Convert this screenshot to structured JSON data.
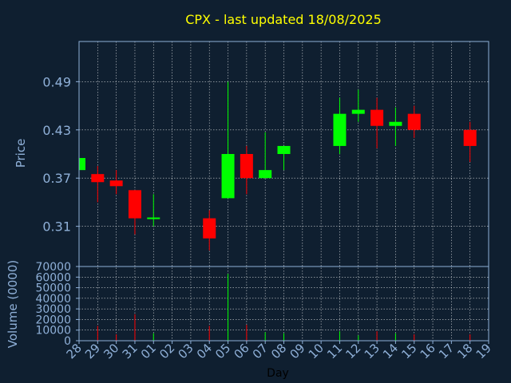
{
  "chart_data": {
    "type": "candlestick",
    "title": "CPX - last updated 18/08/2025",
    "colors": {
      "background": "#0f1f30",
      "up": "#00ff00",
      "down": "#ff0000",
      "grid": "#ffffff",
      "axis_text": "#8fb0d8",
      "title": "#ffff00"
    },
    "grid": true,
    "x_ticks": [
      "28",
      "29",
      "30",
      "31",
      "01",
      "02",
      "03",
      "04",
      "05",
      "06",
      "07",
      "08",
      "09",
      "10",
      "11",
      "12",
      "13",
      "14",
      "15",
      "16",
      "17",
      "18",
      "19"
    ],
    "xlabel": "Day",
    "price": {
      "ylabel": "Price",
      "ylim": [
        0.26,
        0.54
      ],
      "ticks": [
        "0.31",
        "0.37",
        "0.43",
        "0.49"
      ],
      "tick_values": [
        0.31,
        0.37,
        0.43,
        0.49
      ]
    },
    "volume": {
      "ylabel": "Volume (0000)",
      "ylim": [
        0,
        70000
      ],
      "ticks": [
        "0",
        "10000",
        "20000",
        "30000",
        "40000",
        "50000",
        "60000",
        "70000"
      ],
      "tick_values": [
        0,
        10000,
        20000,
        30000,
        40000,
        50000,
        60000,
        70000
      ]
    },
    "candles": [
      {
        "day": "28",
        "open": 0.38,
        "high": 0.395,
        "low": 0.375,
        "close": 0.395
      },
      {
        "day": "29",
        "open": 0.375,
        "high": 0.385,
        "low": 0.34,
        "close": 0.365
      },
      {
        "day": "30",
        "open": 0.367,
        "high": 0.38,
        "low": 0.35,
        "close": 0.36
      },
      {
        "day": "31",
        "open": 0.355,
        "high": 0.355,
        "low": 0.3,
        "close": 0.32
      },
      {
        "day": "01",
        "open": 0.319,
        "high": 0.35,
        "low": 0.31,
        "close": 0.321
      },
      {
        "day": "04",
        "open": 0.32,
        "high": 0.33,
        "low": 0.28,
        "close": 0.295
      },
      {
        "day": "05",
        "open": 0.345,
        "high": 0.49,
        "low": 0.345,
        "close": 0.4
      },
      {
        "day": "06",
        "open": 0.4,
        "high": 0.41,
        "low": 0.35,
        "close": 0.37
      },
      {
        "day": "07",
        "open": 0.37,
        "high": 0.427,
        "low": 0.37,
        "close": 0.38
      },
      {
        "day": "08",
        "open": 0.4,
        "high": 0.41,
        "low": 0.38,
        "close": 0.41
      },
      {
        "day": "11",
        "open": 0.41,
        "high": 0.47,
        "low": 0.4,
        "close": 0.45
      },
      {
        "day": "12",
        "open": 0.45,
        "high": 0.48,
        "low": 0.44,
        "close": 0.455
      },
      {
        "day": "13",
        "open": 0.455,
        "high": 0.47,
        "low": 0.407,
        "close": 0.435
      },
      {
        "day": "14",
        "open": 0.435,
        "high": 0.458,
        "low": 0.41,
        "close": 0.44
      },
      {
        "day": "15",
        "open": 0.45,
        "high": 0.46,
        "low": 0.42,
        "close": 0.43
      },
      {
        "day": "18",
        "open": 0.43,
        "high": 0.44,
        "low": 0.39,
        "close": 0.41
      }
    ],
    "volumes": [
      {
        "day": "28",
        "value": 2000,
        "dir": "up"
      },
      {
        "day": "29",
        "value": 14000,
        "dir": "down"
      },
      {
        "day": "30",
        "value": 6000,
        "dir": "down"
      },
      {
        "day": "31",
        "value": 25000,
        "dir": "down"
      },
      {
        "day": "01",
        "value": 7000,
        "dir": "up"
      },
      {
        "day": "04",
        "value": 14000,
        "dir": "down"
      },
      {
        "day": "05",
        "value": 63000,
        "dir": "up"
      },
      {
        "day": "06",
        "value": 15000,
        "dir": "down"
      },
      {
        "day": "07",
        "value": 8000,
        "dir": "up"
      },
      {
        "day": "08",
        "value": 7000,
        "dir": "up"
      },
      {
        "day": "11",
        "value": 9000,
        "dir": "up"
      },
      {
        "day": "12",
        "value": 5000,
        "dir": "up"
      },
      {
        "day": "13",
        "value": 9000,
        "dir": "down"
      },
      {
        "day": "14",
        "value": 7000,
        "dir": "up"
      },
      {
        "day": "15",
        "value": 6000,
        "dir": "down"
      },
      {
        "day": "18",
        "value": 6000,
        "dir": "down"
      }
    ]
  }
}
